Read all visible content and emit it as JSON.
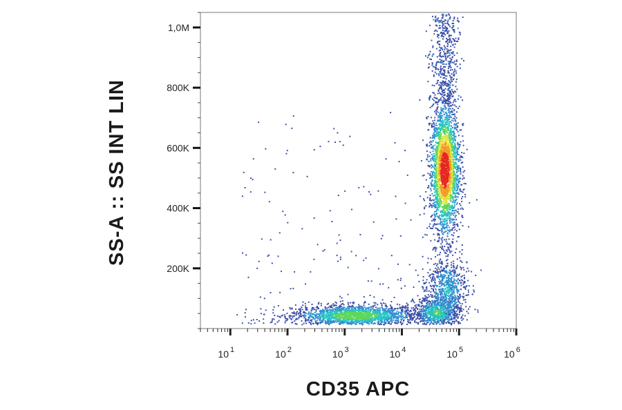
{
  "chart_data": {
    "type": "scatter",
    "subtype": "flow-cytometry-density-dot-plot",
    "xlabel": "CD35 APC",
    "ylabel": "SS-A :: SS INT LIN",
    "x_scale": "log",
    "y_scale": "linear",
    "xlim": [
      3,
      1000000
    ],
    "ylim": [
      0,
      1050000
    ],
    "x_ticks": [
      {
        "base": "10",
        "exp": "1",
        "value": 10
      },
      {
        "base": "10",
        "exp": "2",
        "value": 100
      },
      {
        "base": "10",
        "exp": "3",
        "value": 1000
      },
      {
        "base": "10",
        "exp": "4",
        "value": 10000
      },
      {
        "base": "10",
        "exp": "5",
        "value": 100000
      },
      {
        "base": "10",
        "exp": "6",
        "value": 1000000
      }
    ],
    "y_ticks": [
      {
        "label": "200K",
        "value": 200000
      },
      {
        "label": "400K",
        "value": 400000
      },
      {
        "label": "600K",
        "value": 600000
      },
      {
        "label": "800K",
        "value": 800000
      },
      {
        "label": "1,0M",
        "value": 1000000
      }
    ],
    "grid": false,
    "legend": "none",
    "colormap": [
      "#3b4fa8",
      "#2f8fd0",
      "#27c4c2",
      "#5fd65a",
      "#e3e23a",
      "#f29a27",
      "#e5261f"
    ],
    "populations": [
      {
        "x_center": 1500,
        "y_center": 45000,
        "x_spread_decades": 0.55,
        "y_spread": 18000,
        "peak_density": 0.55
      },
      {
        "x_center": 55000,
        "y_center": 530000,
        "x_spread_decades": 0.13,
        "y_spread": 110000,
        "peak_density": 1.0
      },
      {
        "x_center": 40000,
        "y_center": 55000,
        "x_spread_decades": 0.2,
        "y_spread": 25000,
        "peak_density": 0.45
      },
      {
        "x_center": 60000,
        "y_center": 130000,
        "x_spread_decades": 0.18,
        "y_spread": 55000,
        "peak_density": 0.3
      }
    ]
  }
}
